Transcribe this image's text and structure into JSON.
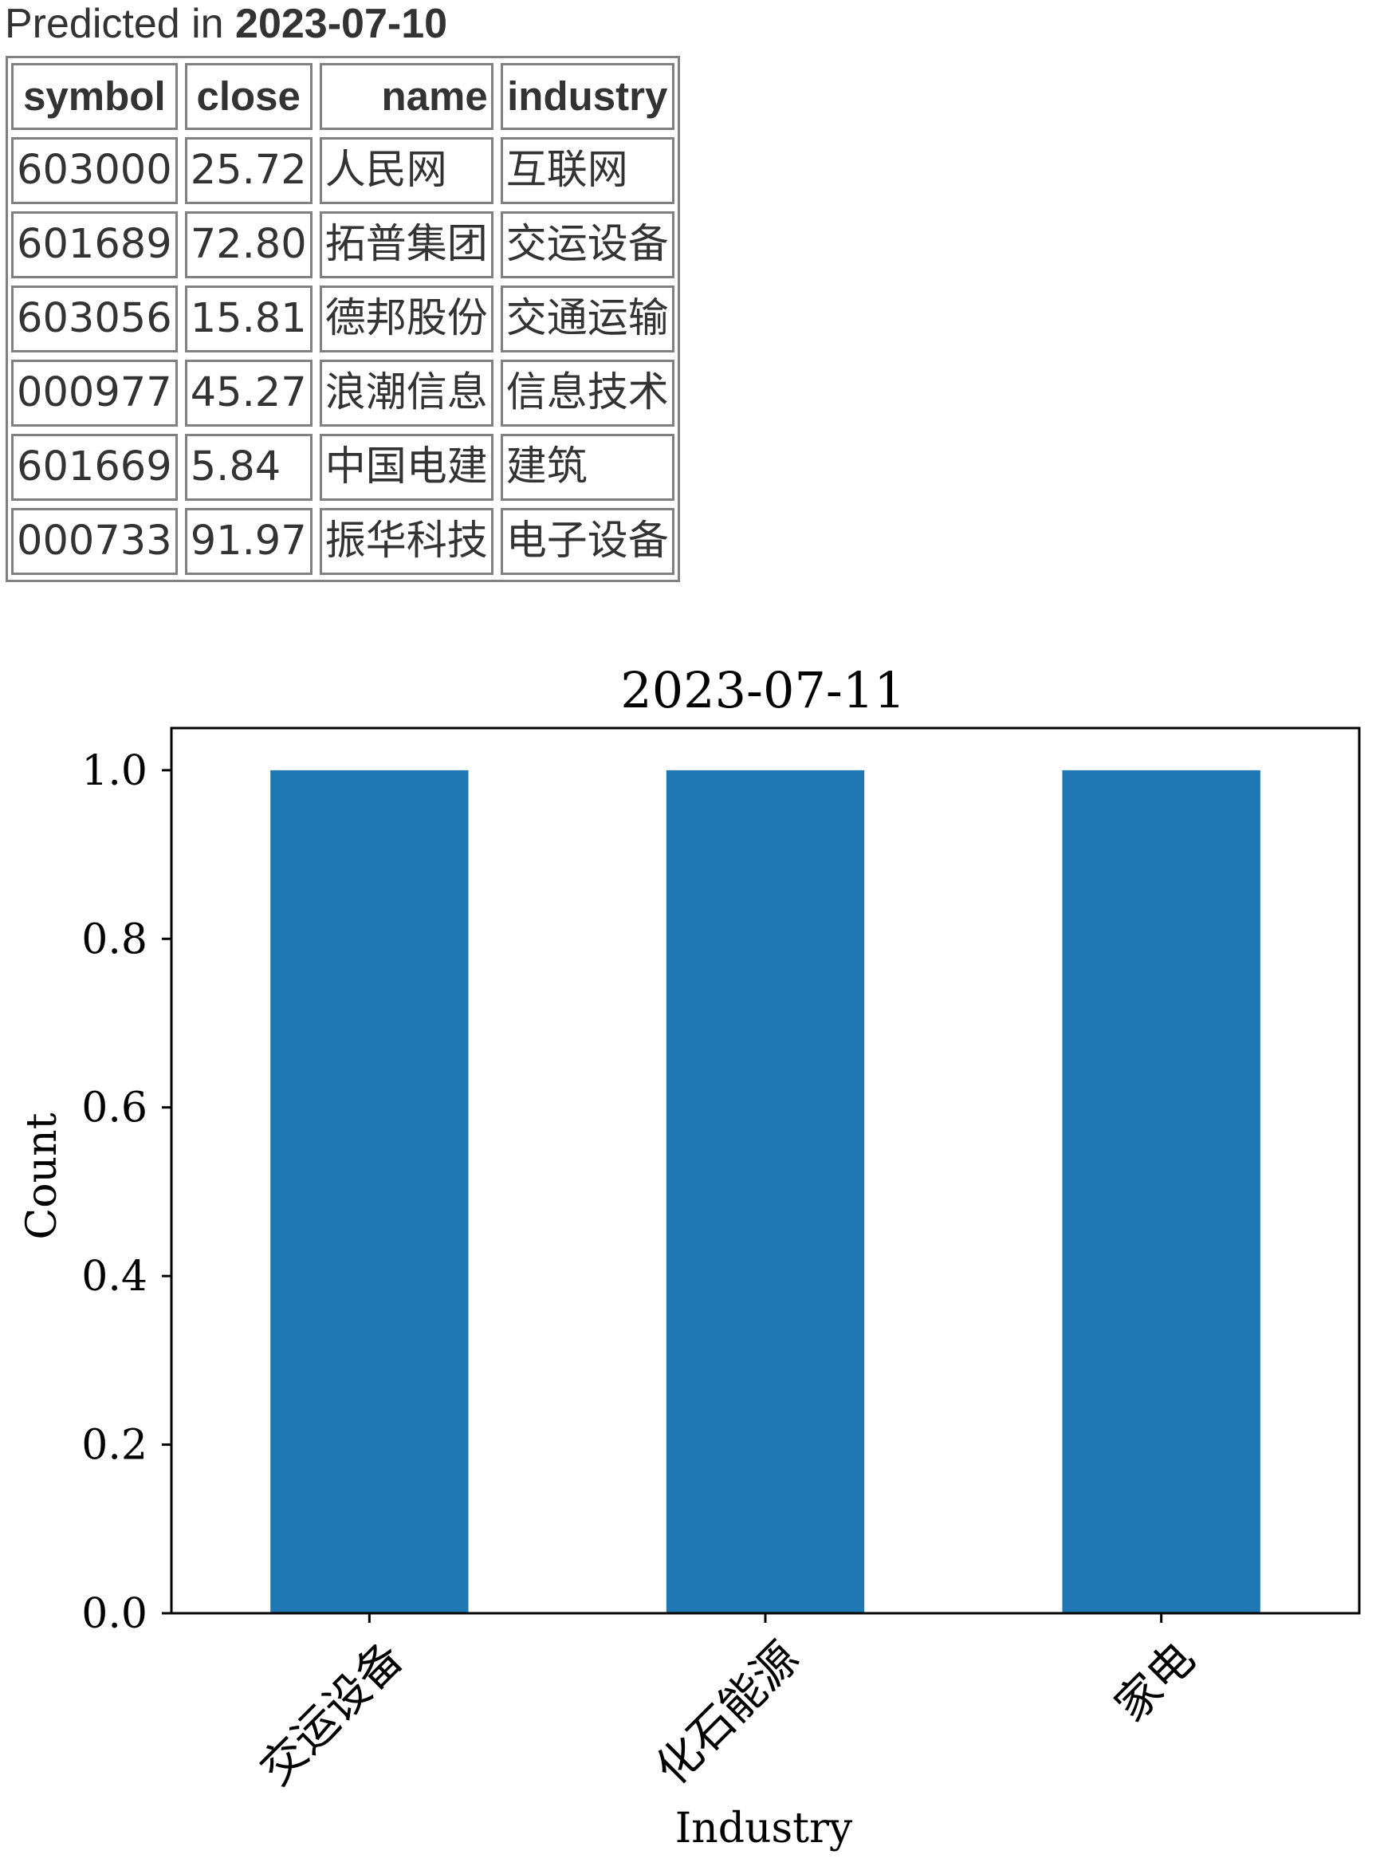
{
  "heading": {
    "prefix": "Predicted in ",
    "date": "2023-07-10"
  },
  "table": {
    "columns": [
      "symbol",
      "close",
      "name",
      "industry"
    ],
    "rows": [
      [
        "603000",
        "25.72",
        "人民网",
        "互联网"
      ],
      [
        "601689",
        "72.80",
        "拓普集团",
        "交运设备"
      ],
      [
        "603056",
        "15.81",
        "德邦股份",
        "交通运输"
      ],
      [
        "000977",
        "45.27",
        "浪潮信息",
        "信息技术"
      ],
      [
        "601669",
        "5.84",
        "中国电建",
        "建筑"
      ],
      [
        "000733",
        "91.97",
        "振华科技",
        "电子设备"
      ]
    ]
  },
  "chart_data": {
    "type": "bar",
    "title": "2023-07-11",
    "xlabel": "Industry",
    "ylabel": "Count",
    "categories": [
      "交运设备",
      "化石能源",
      "家电"
    ],
    "values": [
      1,
      1,
      1
    ],
    "ylim": [
      0,
      1.05
    ],
    "yticks": [
      0.0,
      0.2,
      0.4,
      0.6,
      0.8,
      1.0
    ],
    "ytick_labels": [
      "0.0",
      "0.2",
      "0.4",
      "0.6",
      "0.8",
      "1.0"
    ],
    "grid": false,
    "bar_color": "#1f77b4"
  }
}
